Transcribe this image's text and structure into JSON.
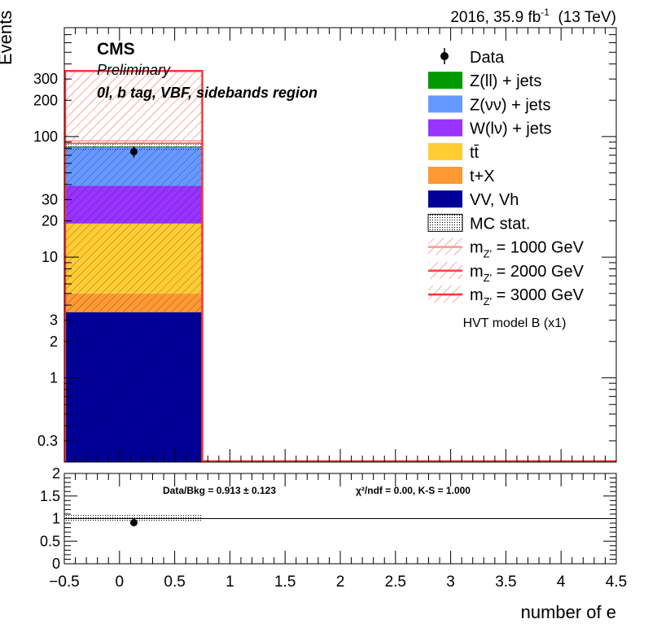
{
  "header": {
    "lumi_pre": "2016, 35.9 fb",
    "lumi_exp": "-1",
    "lumi_post": "  (13 TeV)"
  },
  "cms": {
    "label": "CMS",
    "status": "Preliminary",
    "region": "0l, b tag, VBF, sidebands region"
  },
  "chart_data": [
    {
      "type": "bar",
      "subtype": "stacked-histogram",
      "ylabel": "Events",
      "yscale": "log",
      "ylim": [
        0.2,
        800
      ],
      "xlim": [
        -0.5,
        4.5
      ],
      "yticks": [
        "0.3",
        "1",
        "2",
        "3",
        "10",
        "20",
        "30",
        "100",
        "200",
        "300"
      ],
      "bin": [
        -0.5,
        0.75
      ],
      "stack": [
        {
          "name": "VV, Vh",
          "value": 3.5,
          "color": "#000099"
        },
        {
          "name": "t+X",
          "value": 1.5,
          "color": "#ff9933"
        },
        {
          "name": "tt̄",
          "value": 14.0,
          "color": "#ffcc33"
        },
        {
          "name": "W(lν) + jets",
          "value": 20.0,
          "color": "#9933ff"
        },
        {
          "name": "Z(νν) + jets",
          "value": 43.0,
          "color": "#6699ff"
        },
        {
          "name": "Z(ll) + jets",
          "value": 1.0,
          "color": "#009900"
        }
      ],
      "data": {
        "name": "Data",
        "x": 0.13,
        "y": 75,
        "err": 8
      },
      "signals": [
        {
          "name": "m_Z' = 1000 GeV",
          "value": 92,
          "color": "#ff9999"
        },
        {
          "name": "m_Z' = 2000 GeV",
          "value": 88,
          "color": "#ff4444"
        },
        {
          "name": "m_Z' = 3000 GeV",
          "value": 350,
          "color": "#ff3333"
        }
      ],
      "legend": [
        {
          "key": "data",
          "label": "Data"
        },
        {
          "key": "fill",
          "label": "Z(ll) + jets",
          "color": "#009900"
        },
        {
          "key": "fill",
          "label": "Z(νν) + jets",
          "color": "#6699ff"
        },
        {
          "key": "fill",
          "label": "W(lν) + jets",
          "color": "#9933ff"
        },
        {
          "key": "fill",
          "label": "tt̄",
          "color": "#ffcc33"
        },
        {
          "key": "fill",
          "label": "t+X",
          "color": "#ff9933"
        },
        {
          "key": "fill",
          "label": "VV, Vh",
          "color": "#000099"
        },
        {
          "key": "stat",
          "label": "MC stat."
        },
        {
          "key": "sig",
          "label_pre": "m",
          "label_sub": "Z'",
          "label_post": " = 1000 GeV",
          "color": "#ff9999"
        },
        {
          "key": "sig",
          "label_pre": "m",
          "label_sub": "Z'",
          "label_post": " = 2000 GeV",
          "color": "#ff4444"
        },
        {
          "key": "sig",
          "label_pre": "m",
          "label_sub": "Z'",
          "label_post": " = 3000 GeV",
          "color": "#ff3333"
        }
      ],
      "legend_placement": "top-right",
      "model_note": "HVT model B (x1)"
    },
    {
      "type": "scatter",
      "subtype": "ratio",
      "xlabel": "number of e",
      "xlim": [
        -0.5,
        4.5
      ],
      "ylim": [
        0,
        2
      ],
      "xticks": [
        "−0.5",
        "0",
        "0.5",
        "1",
        "1.5",
        "2",
        "2.5",
        "3",
        "3.5",
        "4",
        "4.5"
      ],
      "yticks": [
        "0",
        "0.5",
        "1",
        "1.5",
        "2"
      ],
      "points": [
        {
          "x": 0.13,
          "y": 0.91
        }
      ],
      "band": {
        "x": [
          -0.5,
          0.75
        ],
        "y": [
          0.92,
          1.08
        ]
      },
      "reference_line": 1,
      "stats_text": "Data/Bkg = 0.913 ± 0.123",
      "chi2_text": "χ²/ndf = 0.00,   K-S = 1.000"
    }
  ]
}
